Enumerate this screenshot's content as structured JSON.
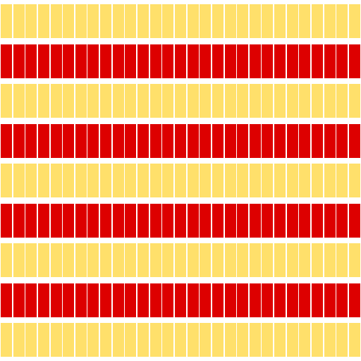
{
  "pattern": {
    "background_color": "#ffffff",
    "colors": {
      "yellow": "#ffe06b",
      "red": "#dd0000"
    },
    "row_sequence": [
      "yellow",
      "red",
      "yellow",
      "red",
      "yellow",
      "red",
      "yellow",
      "red",
      "yellow"
    ],
    "tiles_per_row": 29
  }
}
